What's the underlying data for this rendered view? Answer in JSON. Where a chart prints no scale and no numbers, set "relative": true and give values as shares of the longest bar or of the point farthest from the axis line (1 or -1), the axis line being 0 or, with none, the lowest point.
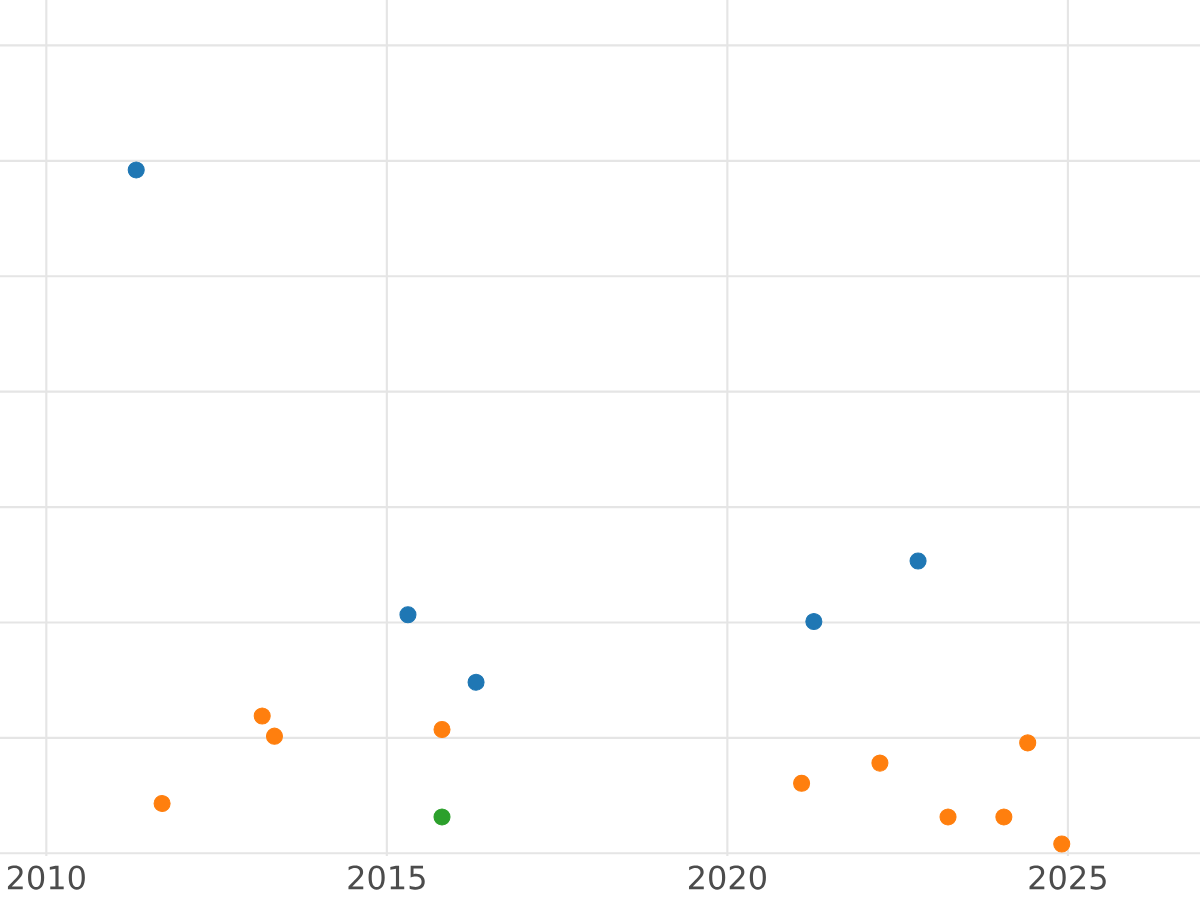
{
  "chart_data": {
    "type": "scatter",
    "relative": true,
    "xlim": [
      2009.32,
      2026.94
    ],
    "xticks": [
      2010,
      2015,
      2020,
      2025
    ],
    "grid": true,
    "marker": "circle",
    "tick_labels": "x",
    "series": [
      {
        "color": "#1f77b4",
        "x": [
          2011.32,
          2015.31,
          2016.31,
          2021.27,
          2022.8
        ],
        "values": [
          1,
          0.34,
          0.24,
          0.33,
          0.42
        ]
      },
      {
        "color": "#ff7f0e",
        "x": [
          2011.7,
          2013.17,
          2013.35,
          2015.81,
          2021.09,
          2022.24,
          2023.24,
          2024.06,
          2024.41,
          2024.91
        ],
        "values": [
          0.06,
          0.19,
          0.16,
          0.17,
          0.09,
          0.12,
          0.04,
          0.04,
          0.15,
          0
        ]
      },
      {
        "color": "#2ca02c",
        "x": [
          2015.81
        ],
        "values": [
          0.04
        ]
      }
    ]
  }
}
